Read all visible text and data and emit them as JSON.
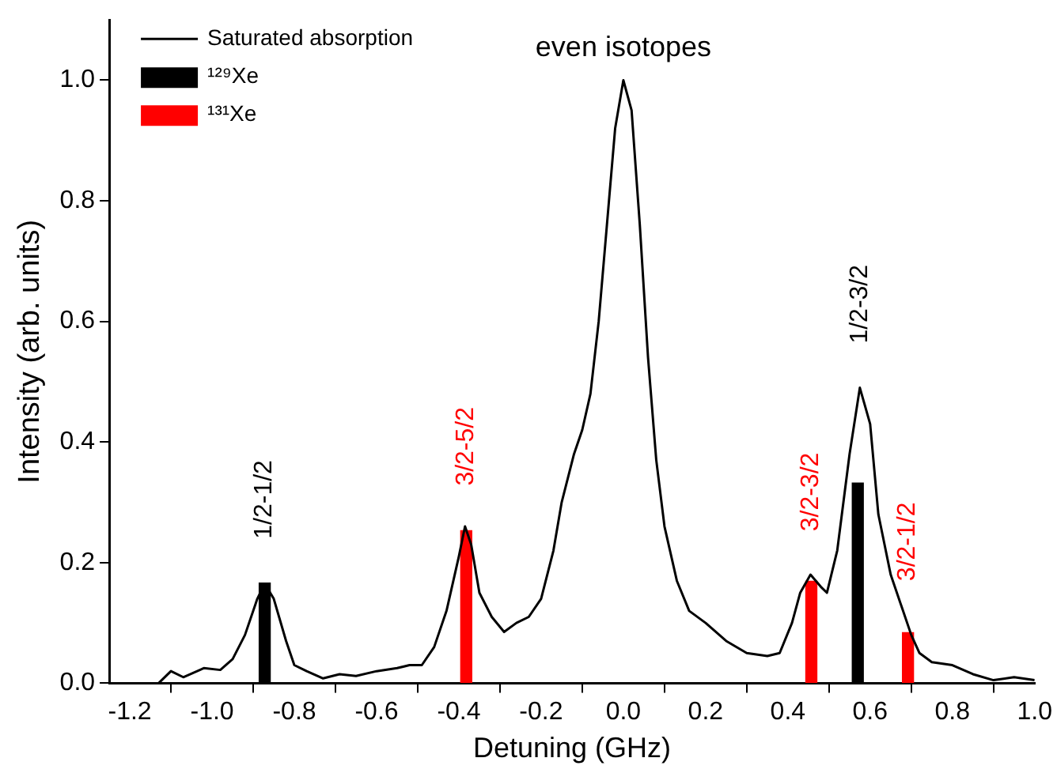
{
  "chart_data": {
    "type": "line",
    "xlabel": "Detuning (GHz)",
    "ylabel": "Intensity (arb. units)",
    "xlim": [
      -1.25,
      1.0
    ],
    "xticks": [
      {
        "value": -1.2,
        "label": "-1.2"
      },
      {
        "value": -1.0,
        "label": "-1.0"
      },
      {
        "value": -0.8,
        "label": "-0.8"
      },
      {
        "value": -0.6,
        "label": "-0.6"
      },
      {
        "value": -0.4,
        "label": "-0.4"
      },
      {
        "value": -0.2,
        "label": "-0.2"
      },
      {
        "value": 0,
        "label": "0.0"
      },
      {
        "value": 0.2,
        "label": "0.2"
      },
      {
        "value": 0.4,
        "label": "0.4"
      },
      {
        "value": 0.6,
        "label": "0.6"
      },
      {
        "value": 0.8,
        "label": "0.8"
      },
      {
        "value": 1.0,
        "label": "1.0"
      }
    ],
    "ylim": [
      0,
      1.1
    ],
    "yticks": [
      {
        "value": 0,
        "label": "0.0"
      },
      {
        "value": 0.2,
        "label": "0.2"
      },
      {
        "value": 0.4,
        "label": "0.4"
      },
      {
        "value": 0.6,
        "label": "0.6"
      },
      {
        "value": 0.8,
        "label": "0.8"
      },
      {
        "value": 1.0,
        "label": "1.0"
      }
    ],
    "grid": false,
    "legend": "top left",
    "marker": "none",
    "line_style": "solid",
    "series": [
      {
        "name": "Saturated absorption",
        "color": "#000000",
        "x": [
          -1.13,
          -1.1,
          -1.07,
          -1.02,
          -0.98,
          -0.95,
          -0.92,
          -0.89,
          -0.872,
          -0.85,
          -0.82,
          -0.8,
          -0.77,
          -0.73,
          -0.69,
          -0.65,
          -0.6,
          -0.55,
          -0.52,
          -0.49,
          -0.46,
          -0.43,
          -0.4,
          -0.385,
          -0.37,
          -0.35,
          -0.32,
          -0.29,
          -0.26,
          -0.23,
          -0.2,
          -0.17,
          -0.15,
          -0.12,
          -0.1,
          -0.08,
          -0.06,
          -0.04,
          -0.02,
          0,
          0.02,
          0.04,
          0.06,
          0.08,
          0.1,
          0.13,
          0.16,
          0.2,
          0.25,
          0.3,
          0.35,
          0.38,
          0.41,
          0.43,
          0.455,
          0.48,
          0.495,
          0.52,
          0.55,
          0.575,
          0.6,
          0.62,
          0.65,
          0.68,
          0.7,
          0.72,
          0.75,
          0.8,
          0.85,
          0.9,
          0.95,
          1.0
        ],
        "values": [
          0.0,
          0.02,
          0.01,
          0.025,
          0.022,
          0.04,
          0.08,
          0.14,
          0.165,
          0.14,
          0.07,
          0.03,
          0.02,
          0.008,
          0.015,
          0.012,
          0.02,
          0.025,
          0.03,
          0.03,
          0.06,
          0.12,
          0.21,
          0.26,
          0.23,
          0.15,
          0.11,
          0.085,
          0.1,
          0.11,
          0.14,
          0.22,
          0.3,
          0.38,
          0.42,
          0.48,
          0.6,
          0.76,
          0.92,
          1.0,
          0.95,
          0.76,
          0.54,
          0.37,
          0.26,
          0.17,
          0.12,
          0.1,
          0.07,
          0.05,
          0.045,
          0.05,
          0.1,
          0.15,
          0.18,
          0.16,
          0.15,
          0.22,
          0.38,
          0.49,
          0.43,
          0.28,
          0.18,
          0.12,
          0.08,
          0.05,
          0.035,
          0.03,
          0.015,
          0.005,
          0.01,
          0.005
        ]
      },
      {
        "name": "¹²⁹Xe",
        "type": "bar",
        "color": "#000000",
        "x": [
          -0.872,
          0.57
        ],
        "values": [
          0.166,
          0.332
        ]
      },
      {
        "name": "¹³¹Xe",
        "type": "bar",
        "color": "#ff0000",
        "x": [
          -0.382,
          0.457,
          0.692
        ],
        "values": [
          0.253,
          0.169,
          0.084
        ]
      }
    ],
    "annotations": [
      {
        "text": "even isotopes",
        "x": 0,
        "y": 1.0
      },
      {
        "text": "1/2-1/2",
        "x": -0.872,
        "y": 0.166
      },
      {
        "text": "3/2-5/2",
        "x": -0.382,
        "y": 0.253
      },
      {
        "text": "3/2-3/2",
        "x": 0.457,
        "y": 0.169
      },
      {
        "text": "1/2-3/2",
        "x": 0.575,
        "y": 0.49
      },
      {
        "text": "3/2-1/2",
        "x": 0.692,
        "y": 0.084
      }
    ]
  }
}
